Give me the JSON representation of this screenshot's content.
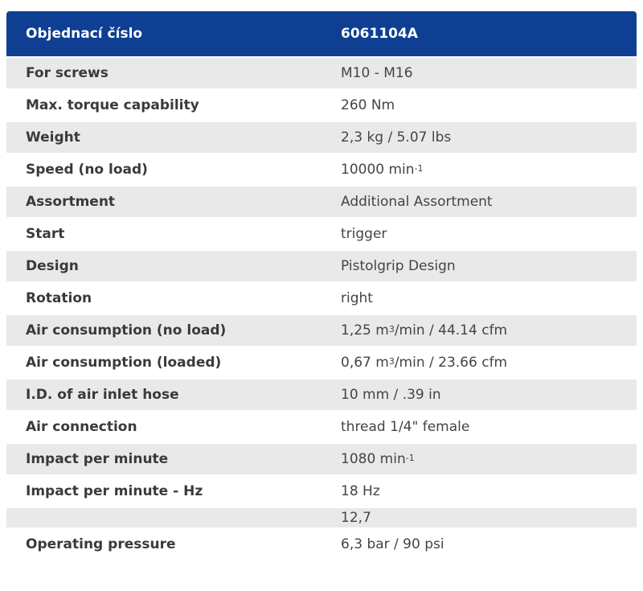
{
  "header": {
    "label": "Objednací číslo",
    "value": "6061104A"
  },
  "rows": [
    {
      "label": "For screws",
      "value": "M10 - M16",
      "sup": "",
      "tail": ""
    },
    {
      "label": "Max. torque capability",
      "value": "260 Nm",
      "sup": "",
      "tail": ""
    },
    {
      "label": "Weight",
      "value": "2,3 kg / 5.07 lbs",
      "sup": "",
      "tail": ""
    },
    {
      "label": "Speed (no load)",
      "value": "10000 min",
      "sup": "-1",
      "tail": ""
    },
    {
      "label": "Assortment",
      "value": "Additional Assortment",
      "sup": "",
      "tail": ""
    },
    {
      "label": "Start",
      "value": "trigger",
      "sup": "",
      "tail": ""
    },
    {
      "label": "Design",
      "value": "Pistolgrip Design",
      "sup": "",
      "tail": ""
    },
    {
      "label": "Rotation",
      "value": "right",
      "sup": "",
      "tail": ""
    },
    {
      "label": "Air consumption (no load)",
      "value": "1,25 m",
      "sup": "3",
      "tail": "/min / 44.14 cfm"
    },
    {
      "label": "Air consumption (loaded)",
      "value": "0,67 m",
      "sup": "3",
      "tail": "/min / 23.66 cfm"
    },
    {
      "label": "I.D. of air inlet hose",
      "value": "10 mm / .39 in",
      "sup": "",
      "tail": ""
    },
    {
      "label": "Air connection",
      "value": "thread 1/4\" female",
      "sup": "",
      "tail": ""
    },
    {
      "label": "Impact per minute",
      "value": "1080 min",
      "sup": "-1",
      "tail": ""
    },
    {
      "label": "Impact per minute - Hz",
      "value": "18 Hz",
      "sup": "",
      "tail": ""
    },
    {
      "label": "",
      "value": "12,7",
      "sup": "",
      "tail": ""
    },
    {
      "label": "Operating pressure",
      "value": "6,3 bar / 90 psi",
      "sup": "",
      "tail": ""
    }
  ]
}
